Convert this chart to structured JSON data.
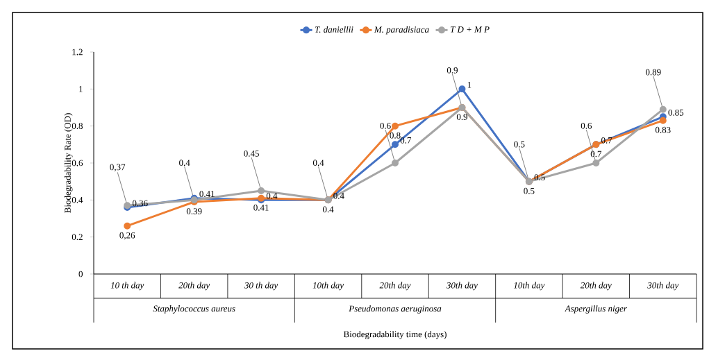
{
  "chart_data": {
    "type": "line",
    "xlabel": "Biodegradability time (days)",
    "ylabel": "Biodegradability Rate (OD)",
    "categories": [
      "10 th day",
      "20th day",
      "30 th day",
      "10th day",
      "20th day",
      "30th day",
      "10th day",
      "20th day",
      "30th day"
    ],
    "annotations": [
      "Staphylococcus aureus",
      "Pseudomonas aeruginosa",
      "Aspergillus niger"
    ],
    "series": [
      {
        "name": "T. daniellii",
        "color": "#4472c4",
        "values": [
          0.36,
          0.41,
          0.4,
          0.4,
          0.7,
          1,
          0.5,
          0.7,
          0.85
        ],
        "value_labels": [
          "0.36",
          "0.41",
          "0.4",
          "0.4",
          "0.7",
          "1",
          "0.5",
          "0.7",
          "0.85"
        ]
      },
      {
        "name": "M. paradisiaca",
        "color": "#ed7d31",
        "values": [
          0.26,
          0.39,
          0.41,
          0.4,
          0.8,
          0.9,
          0.5,
          0.7,
          0.83
        ],
        "value_labels": [
          "0,26",
          "0.39",
          "0.41",
          "0.4",
          "0.8",
          "0.9",
          "0.5",
          "0.7",
          "0.83"
        ]
      },
      {
        "name": "T D + M P",
        "color": "#a5a5a5",
        "values": [
          0.37,
          0.4,
          0.45,
          0.4,
          0.6,
          0.9,
          0.5,
          0.6,
          0.89
        ],
        "value_labels": [
          "0,37",
          "0.4",
          "0.45",
          "0.4",
          "0.6",
          "0.9",
          "0.5",
          "0.6",
          "0.89"
        ]
      }
    ],
    "ylim": [
      0,
      1.2
    ],
    "yticks": [
      0,
      0.2,
      0.4,
      0.6,
      0.8,
      1,
      1.2
    ],
    "grid": false,
    "legend": "top",
    "marker": "circle",
    "line_style": "solid"
  }
}
